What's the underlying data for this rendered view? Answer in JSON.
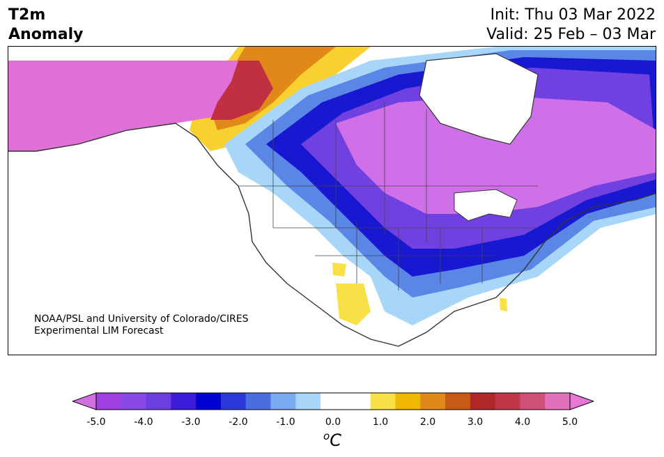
{
  "header": {
    "title_line1": "T2m",
    "title_line2": "Anomaly",
    "init_text": "Init: Thu 03 Mar 2022",
    "valid_text": "Valid: 25 Feb – 03 Mar"
  },
  "map": {
    "credit_line1": "NOAA/PSL and University of Colorado/CIRES",
    "credit_line2": "Experimental LIM Forecast",
    "region": "North America",
    "variable": "2-meter temperature anomaly"
  },
  "colorbar": {
    "unit_base": "C",
    "unit_sup": "o",
    "tick_labels": [
      "-5.0",
      "-4.0",
      "-3.0",
      "-2.0",
      "-1.0",
      "0.0",
      "1.0",
      "2.0",
      "3.0",
      "4.0",
      "5.0"
    ],
    "colors": [
      "#a040e0",
      "#8a48e6",
      "#6b3ee0",
      "#3c1cd8",
      "#0000d0",
      "#2a3ad8",
      "#4a6ee0",
      "#78aaf0",
      "#a8d6f8",
      "#ffffff",
      "#ffffff",
      "#f8e048",
      "#f0b800",
      "#e08818",
      "#c85a18",
      "#b02828",
      "#c03848",
      "#d05078",
      "#e070b8"
    ],
    "under_color": "#d070e0",
    "over_color": "#e878d8"
  }
}
